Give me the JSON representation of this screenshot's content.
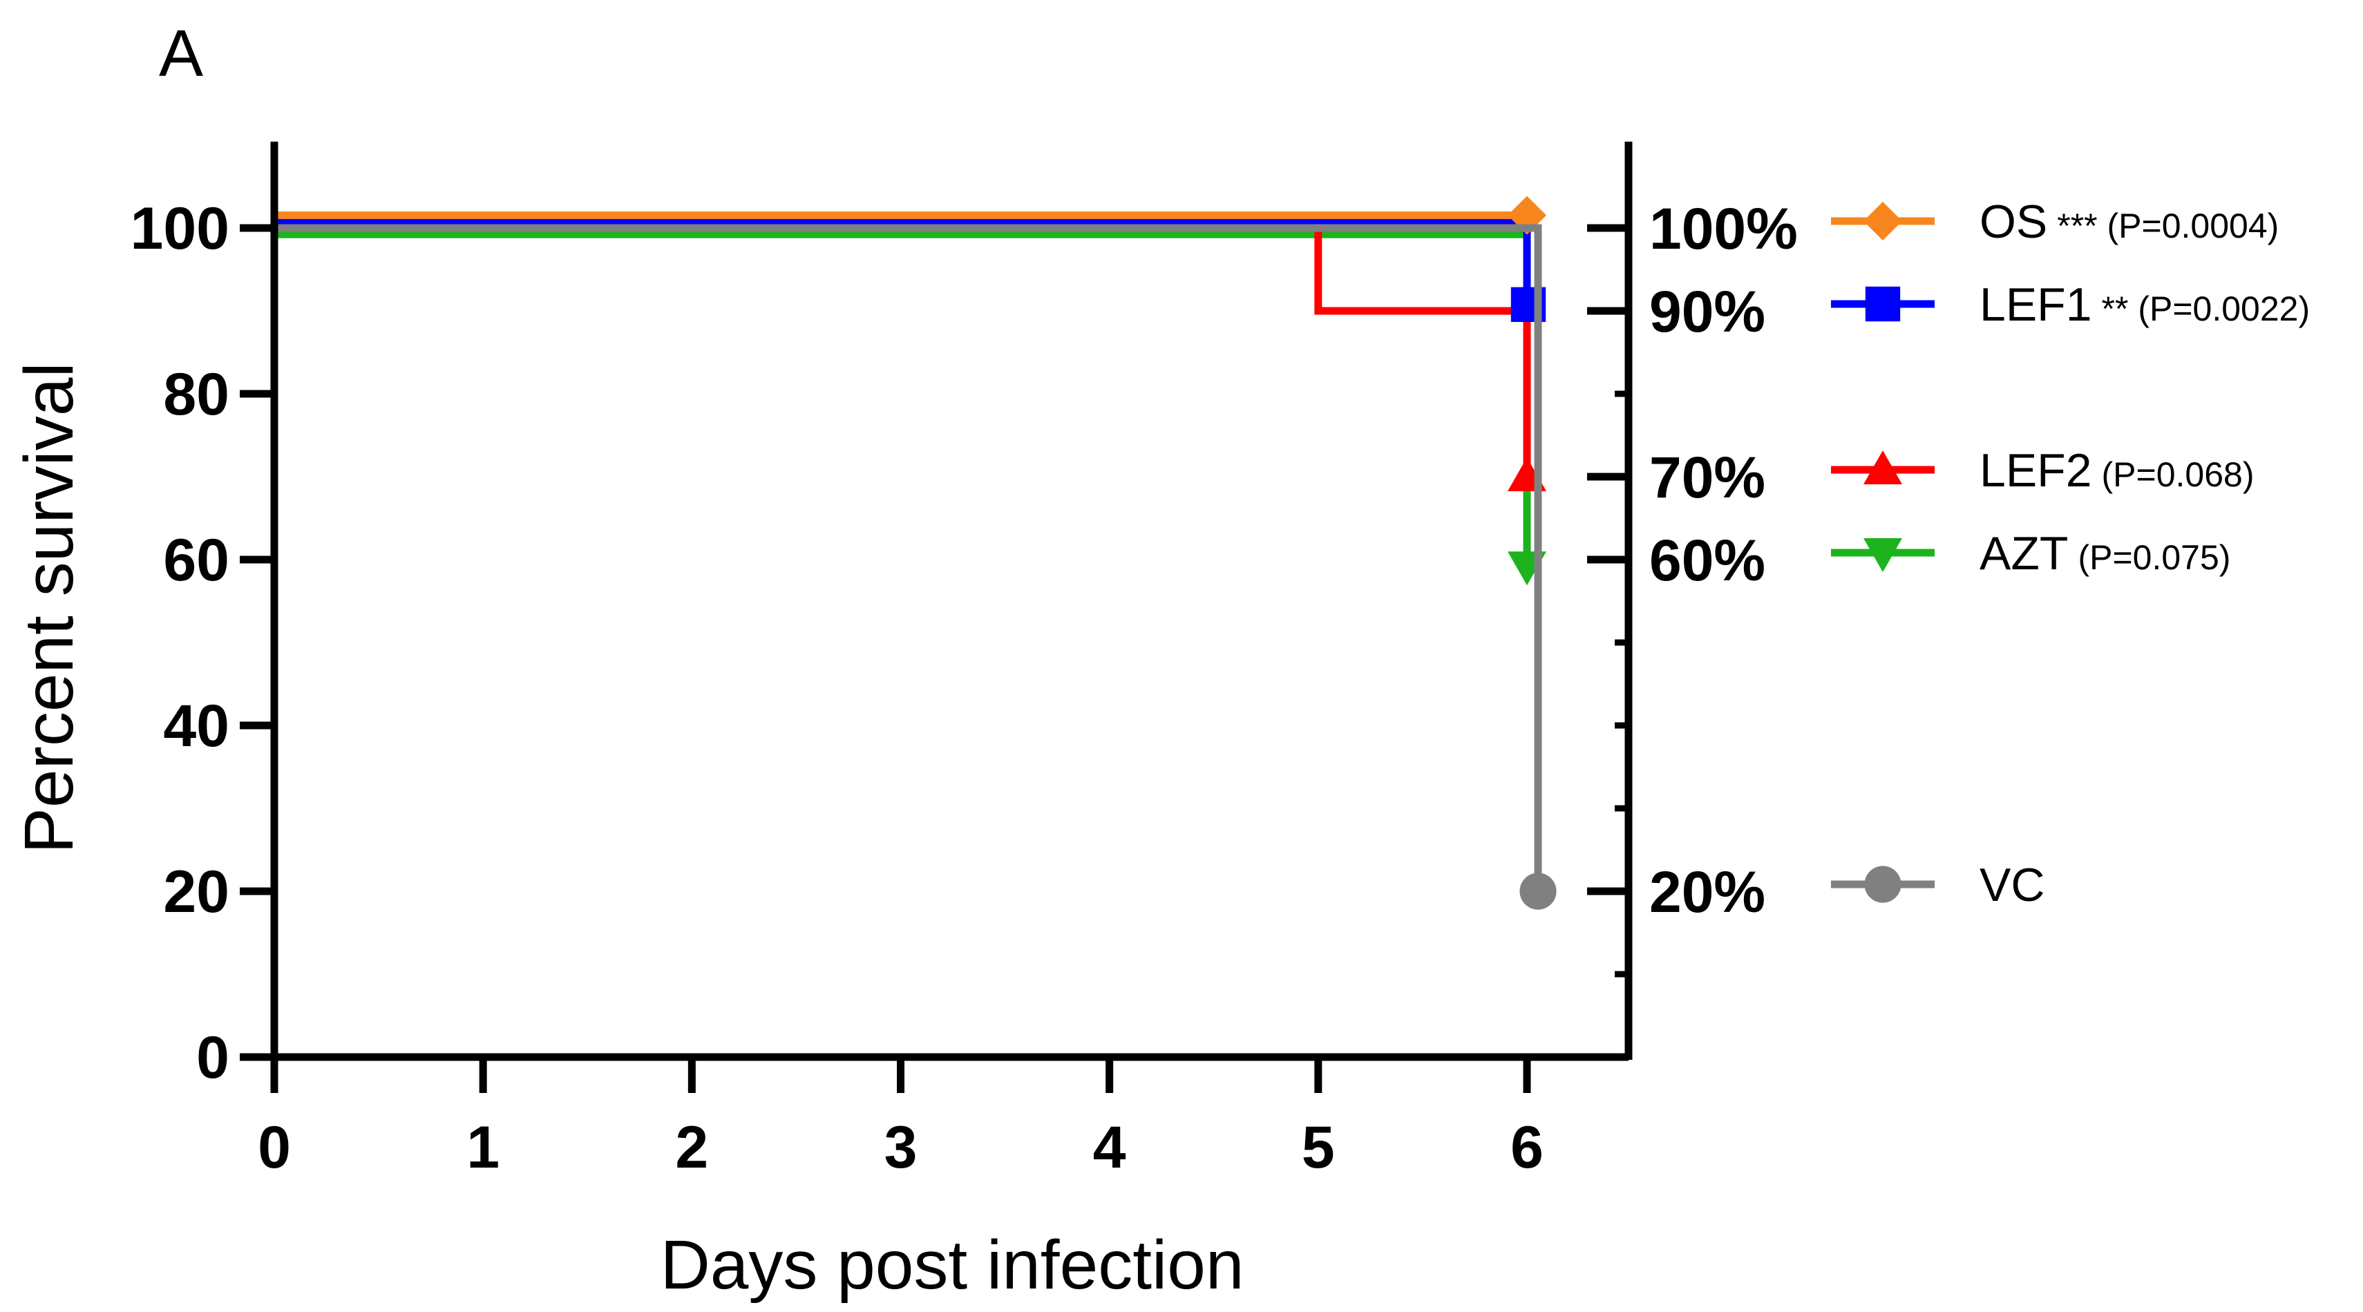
{
  "panel_label": "A",
  "chart_data": {
    "type": "line",
    "step": true,
    "xlabel": "Days post infection",
    "ylabel": "Percent survival",
    "xlim": [
      0,
      6.5
    ],
    "ylim": [
      0,
      110
    ],
    "x_ticks": [
      0,
      1,
      2,
      3,
      4,
      5,
      6
    ],
    "y_ticks": [
      0,
      20,
      40,
      60,
      80,
      100
    ],
    "right_axis_labels": [
      {
        "value": 100,
        "label": "100%"
      },
      {
        "value": 90,
        "label": "90%"
      },
      {
        "value": 70,
        "label": "70%"
      },
      {
        "value": 60,
        "label": "60%"
      },
      {
        "value": 20,
        "label": "20%"
      }
    ],
    "legend_position": "right",
    "series": [
      {
        "name": "OS",
        "note": "*** (P=0.0004)",
        "color": "#f7861f",
        "marker": "diamond",
        "x": [
          0,
          6
        ],
        "y": [
          100,
          100
        ],
        "offset": 4
      },
      {
        "name": "LEF1",
        "note": "** (P=0.0022)",
        "color": "#0000ff",
        "marker": "square",
        "x": [
          0,
          6,
          6
        ],
        "y": [
          100,
          100,
          90
        ],
        "offset": 2
      },
      {
        "name": "LEF2",
        "note": "(P=0.068)",
        "color": "#ff0000",
        "marker": "triangle-up",
        "x": [
          0,
          5,
          5,
          6,
          6
        ],
        "y": [
          100,
          100,
          90,
          90,
          70
        ],
        "offset": 0
      },
      {
        "name": "AZT",
        "note": "(P=0.075)",
        "color": "#1db31d",
        "marker": "triangle-down",
        "x": [
          0,
          6,
          6
        ],
        "y": [
          100,
          100,
          60
        ],
        "offset": -2
      },
      {
        "name": "VC",
        "note": "",
        "color": "#808080",
        "marker": "circle",
        "x": [
          0,
          6,
          6
        ],
        "y": [
          100,
          100,
          20
        ],
        "offset": 0
      }
    ]
  }
}
